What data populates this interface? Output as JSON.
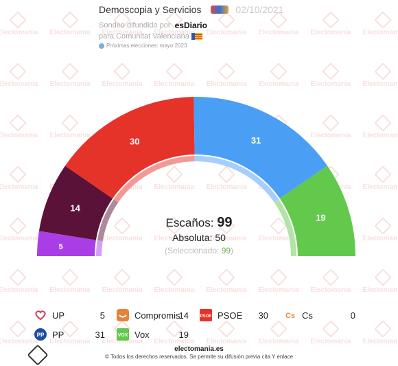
{
  "header": {
    "pollster": "Demoscopia y Servicios",
    "date": "02/10/2021",
    "sponsor_prefix": "Sondeo difundido por",
    "sponsor": "esDiario",
    "region": "para Comunitat Valenciana",
    "next_elections": "Próximas elecciones: mayo 2023"
  },
  "watermark": "Electomania",
  "center": {
    "seats_label": "Escaños:",
    "seats_value": "99",
    "majority_label": "Absoluta:",
    "majority_value": "50",
    "selected_prefix": "(Seleccionado:",
    "selected_value": "99",
    "selected_suffix": ")"
  },
  "chart_data": {
    "type": "pie",
    "layout": "hemicycle",
    "total": 99,
    "majority": 50,
    "series": [
      {
        "name": "UP",
        "value": 5,
        "color": "#a93ee6"
      },
      {
        "name": "Compromis",
        "value": 14,
        "color": "#5b1238"
      },
      {
        "name": "PSOE",
        "value": 30,
        "color": "#e6332a"
      },
      {
        "name": "PP",
        "value": 31,
        "color": "#4a9ff5"
      },
      {
        "name": "Vox",
        "value": 19,
        "color": "#63c94d"
      },
      {
        "name": "Cs",
        "value": 0,
        "color": "#f08c3a"
      }
    ]
  },
  "legend": [
    {
      "name": "UP",
      "value": "5",
      "icon": "up-heart-icon",
      "color": "#c8435a"
    },
    {
      "name": "Compromis",
      "value": "14",
      "icon": "compromis-smile-icon",
      "color": "#e8823a"
    },
    {
      "name": "PSOE",
      "value": "30",
      "icon": "psoe-logo-icon",
      "color": "#e6332a"
    },
    {
      "name": "Cs",
      "value": "0",
      "icon": "cs-logo-icon",
      "color": "#f08c3a"
    },
    {
      "name": "PP",
      "value": "31",
      "icon": "pp-logo-icon",
      "color": "#1f4e9e"
    },
    {
      "name": "Vox",
      "value": "19",
      "icon": "vox-logo-icon",
      "color": "#63c94d"
    }
  ],
  "footer": {
    "site": "electomania.es",
    "copyright": "© Todos los derechos reservados. Se permite su difusión previa cita Y enlace"
  }
}
